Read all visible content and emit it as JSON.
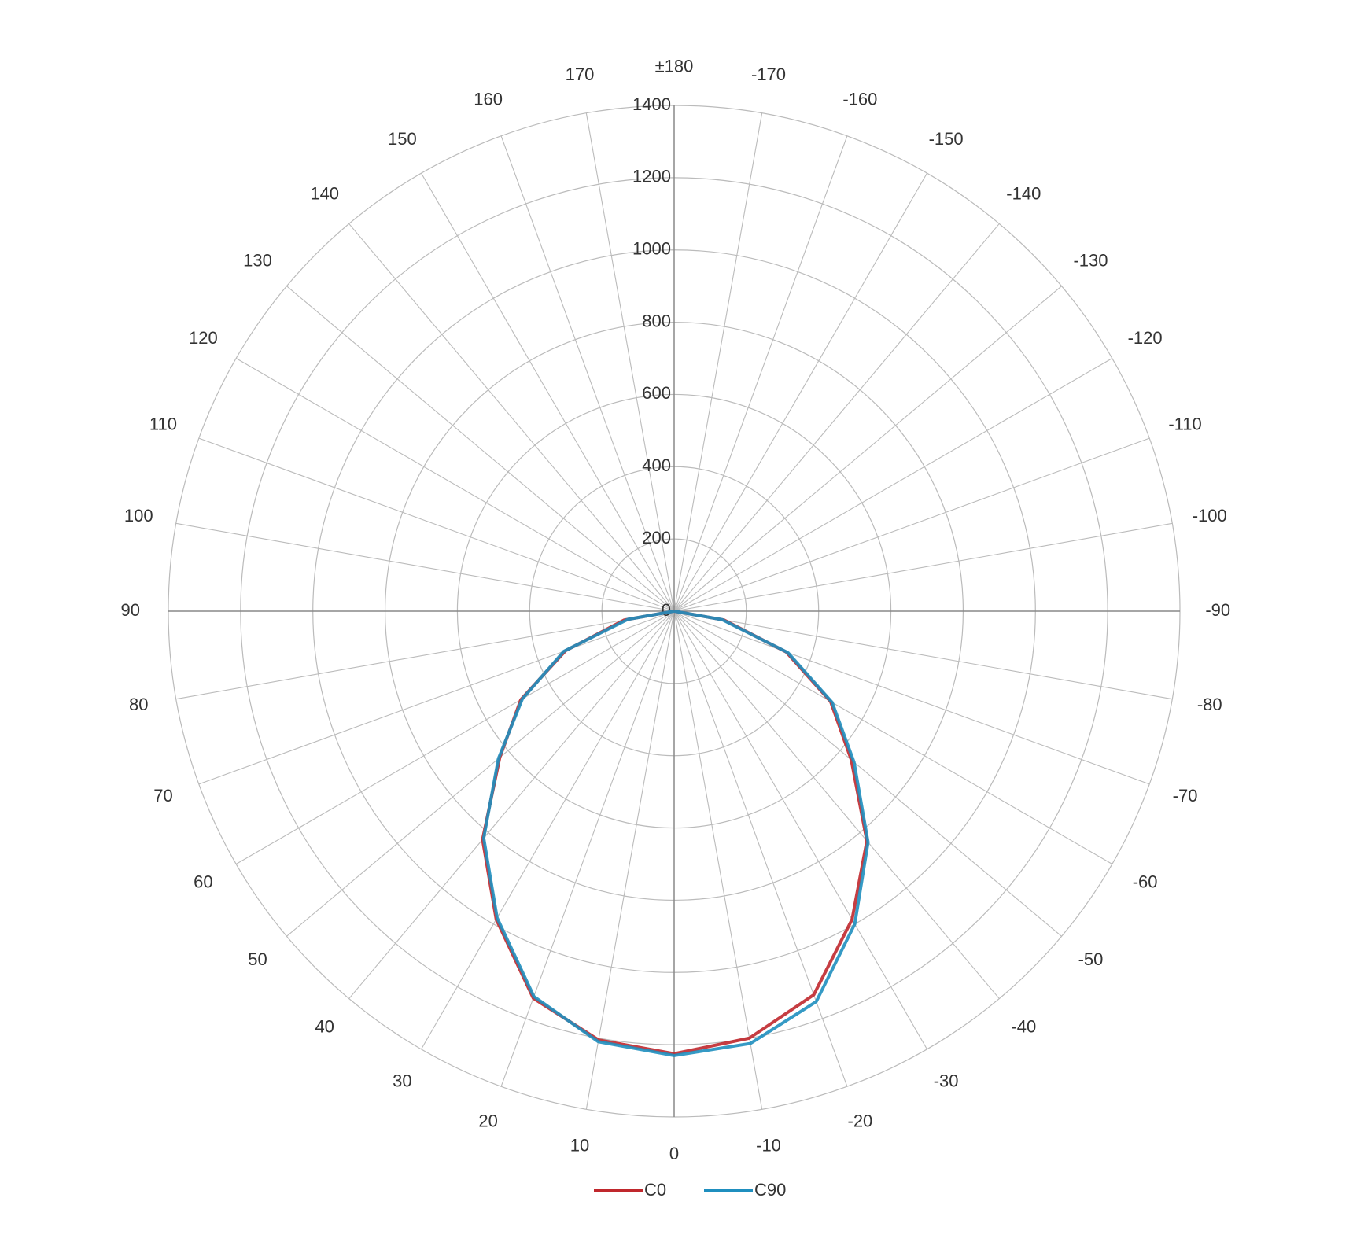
{
  "chart_data": {
    "type": "polar",
    "x": [
      -90,
      -80,
      -70,
      -60,
      -50,
      -40,
      -30,
      -20,
      -10,
      0,
      10,
      20,
      30,
      40,
      50,
      60,
      70,
      80,
      90
    ],
    "series": [
      {
        "name": "C0",
        "color": "#c0282d",
        "values": [
          0,
          140,
          330,
          500,
          640,
          830,
          985,
          1130,
          1200,
          1225,
          1205,
          1140,
          985,
          825,
          630,
          490,
          320,
          140,
          0
        ]
      },
      {
        "name": "C90",
        "color": "#1f8fbf",
        "values": [
          0,
          135,
          335,
          505,
          650,
          835,
          1000,
          1150,
          1215,
          1230,
          1210,
          1135,
          980,
          820,
          635,
          485,
          325,
          130,
          0
        ]
      }
    ],
    "rlim": [
      0,
      1400
    ],
    "rticks": [
      0,
      200,
      400,
      600,
      800,
      1000,
      1200,
      1400
    ],
    "angle_ticks": [
      -170,
      -160,
      -150,
      -140,
      -130,
      -120,
      -110,
      -100,
      -90,
      -80,
      -70,
      -60,
      -50,
      -40,
      -30,
      -20,
      -10,
      0,
      10,
      20,
      30,
      40,
      50,
      60,
      70,
      80,
      90,
      100,
      110,
      120,
      130,
      140,
      150,
      160,
      170,
      {
        "value": 180,
        "label": "±180"
      }
    ],
    "grid": true,
    "legend": "bottom"
  }
}
